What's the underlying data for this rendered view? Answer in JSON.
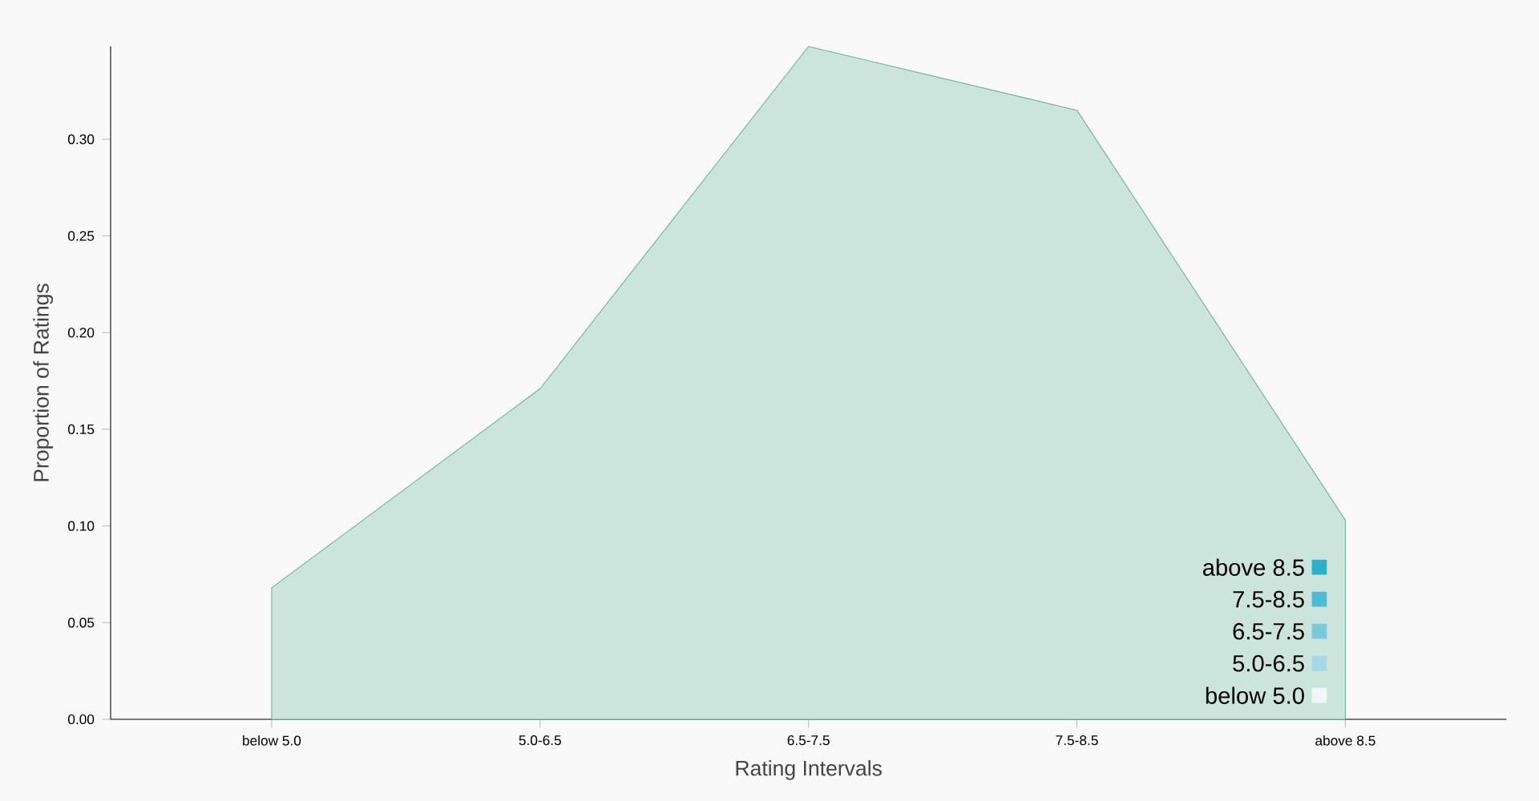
{
  "chart_data": {
    "type": "area",
    "xlabel": "Rating Intervals",
    "ylabel": "Proportion of Ratings",
    "categories": [
      "below 5.0",
      "5.0-6.5",
      "6.5-7.5",
      "7.5-8.5",
      "above 8.5"
    ],
    "series": [
      {
        "color": "#6ab39c",
        "values": [
          0.068,
          0.171,
          0.348,
          0.315,
          0.103
        ]
      }
    ],
    "colors": [
      "#eef8fa",
      "#a6d8e6",
      "#78c9da",
      "#4dbcd0",
      "#2bb0c8"
    ],
    "ylim": [
      0,
      0.348
    ],
    "yticks": [
      {
        "value": 0,
        "label": "0.00"
      },
      {
        "value": 0.05,
        "label": "0.05"
      },
      {
        "value": 0.1,
        "label": "0.10"
      },
      {
        "value": 0.15,
        "label": "0.15"
      },
      {
        "value": 0.2,
        "label": "0.20"
      },
      {
        "value": 0.25,
        "label": "0.25"
      },
      {
        "value": 0.3,
        "label": "0.30"
      }
    ],
    "grid": false
  }
}
